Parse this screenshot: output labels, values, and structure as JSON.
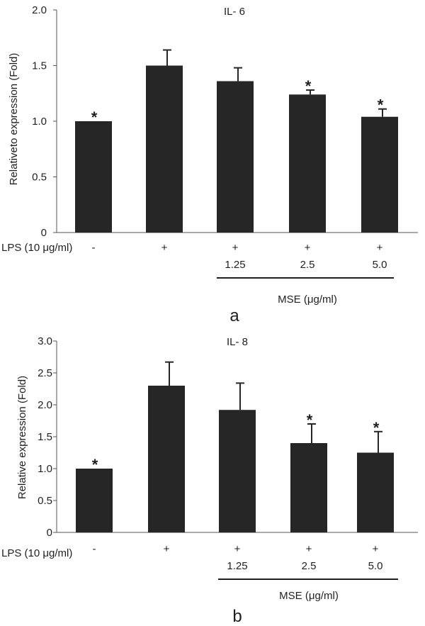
{
  "colors": {
    "bar": "#262626",
    "axis": "#555555",
    "text": "#1f1f1f"
  },
  "chart_data": [
    {
      "type": "bar",
      "panel_label": "a",
      "title": "IL- 6",
      "ylabel": "Relativeto expression (Fold)",
      "ylim": [
        0,
        2.0
      ],
      "yticks": [
        "0",
        "0.5",
        "1.0",
        "1.5",
        "2.0"
      ],
      "ytick_values": [
        0,
        0.5,
        1.0,
        1.5,
        2.0
      ],
      "categories": [
        "-",
        "+",
        "+",
        "+",
        "+"
      ],
      "values": [
        1.0,
        1.5,
        1.36,
        1.24,
        1.04
      ],
      "errors": [
        0,
        0.14,
        0.12,
        0.04,
        0.07
      ],
      "significant": [
        true,
        false,
        false,
        true,
        true
      ],
      "star": "*",
      "lps_label": "LPS (10 μg/ml)",
      "doses": [
        "",
        "",
        "1.25",
        "2.5",
        "5.0"
      ],
      "group_label": "MSE (μg/ml)",
      "grid": false,
      "legend": "none"
    },
    {
      "type": "bar",
      "panel_label": "b",
      "title": "IL- 8",
      "ylabel": "Relative expression (Fold)",
      "ylim": [
        0,
        3.0
      ],
      "yticks": [
        "0",
        "0.5",
        "1.0",
        "1.5",
        "2.0",
        "2.5",
        "3.0"
      ],
      "ytick_values": [
        0,
        0.5,
        1.0,
        1.5,
        2.0,
        2.5,
        3.0
      ],
      "categories": [
        "-",
        "+",
        "+",
        "+",
        "+"
      ],
      "values": [
        1.0,
        2.3,
        1.92,
        1.4,
        1.25
      ],
      "errors": [
        0,
        0.37,
        0.42,
        0.3,
        0.33
      ],
      "significant": [
        true,
        false,
        false,
        true,
        true
      ],
      "star": "*",
      "lps_label": "LPS (10 μg/ml)",
      "doses": [
        "",
        "",
        "1.25",
        "2.5",
        "5.0"
      ],
      "group_label": "MSE (μg/ml)",
      "grid": false,
      "legend": "none"
    }
  ]
}
